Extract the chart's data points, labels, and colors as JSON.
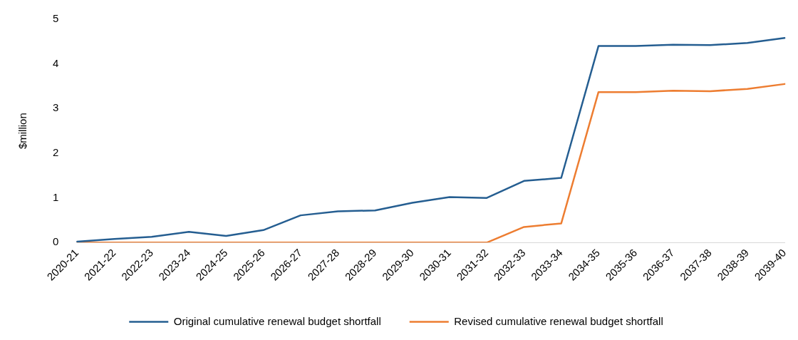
{
  "chart_data": {
    "type": "line",
    "ylabel": "$million",
    "categories": [
      "2020-21",
      "2021-22",
      "2022-23",
      "2023-24",
      "2024-25",
      "2025-26",
      "2026-27",
      "2027-28",
      "2028-29",
      "2029-30",
      "2030-31",
      "2031-32",
      "2032-33",
      "2033-34",
      "2034-35",
      "2035-36",
      "2036-37",
      "2037-38",
      "2038-39",
      "2039-40"
    ],
    "series": [
      {
        "name": "Original cumulative renewal budget shortfall",
        "color": "#255e91",
        "values": [
          0.02,
          0.08,
          0.13,
          0.24,
          0.15,
          0.28,
          0.61,
          0.7,
          0.72,
          0.89,
          1.02,
          1.0,
          1.38,
          1.45,
          4.4,
          4.4,
          4.43,
          4.42,
          4.47,
          4.58
        ]
      },
      {
        "name": "Revised cumulative renewal budget shortfall",
        "color": "#ed7d31",
        "values": [
          0,
          0,
          0,
          0,
          0,
          0,
          0,
          0,
          0,
          0,
          0,
          0,
          0.35,
          0.43,
          3.37,
          3.37,
          3.4,
          3.39,
          3.44,
          3.55
        ]
      }
    ],
    "ylim": [
      0,
      5
    ],
    "yticks": [
      0,
      1,
      2,
      3,
      4,
      5
    ],
    "grid": false,
    "legend": "bottom",
    "marker": "none",
    "line_style": "solid"
  }
}
